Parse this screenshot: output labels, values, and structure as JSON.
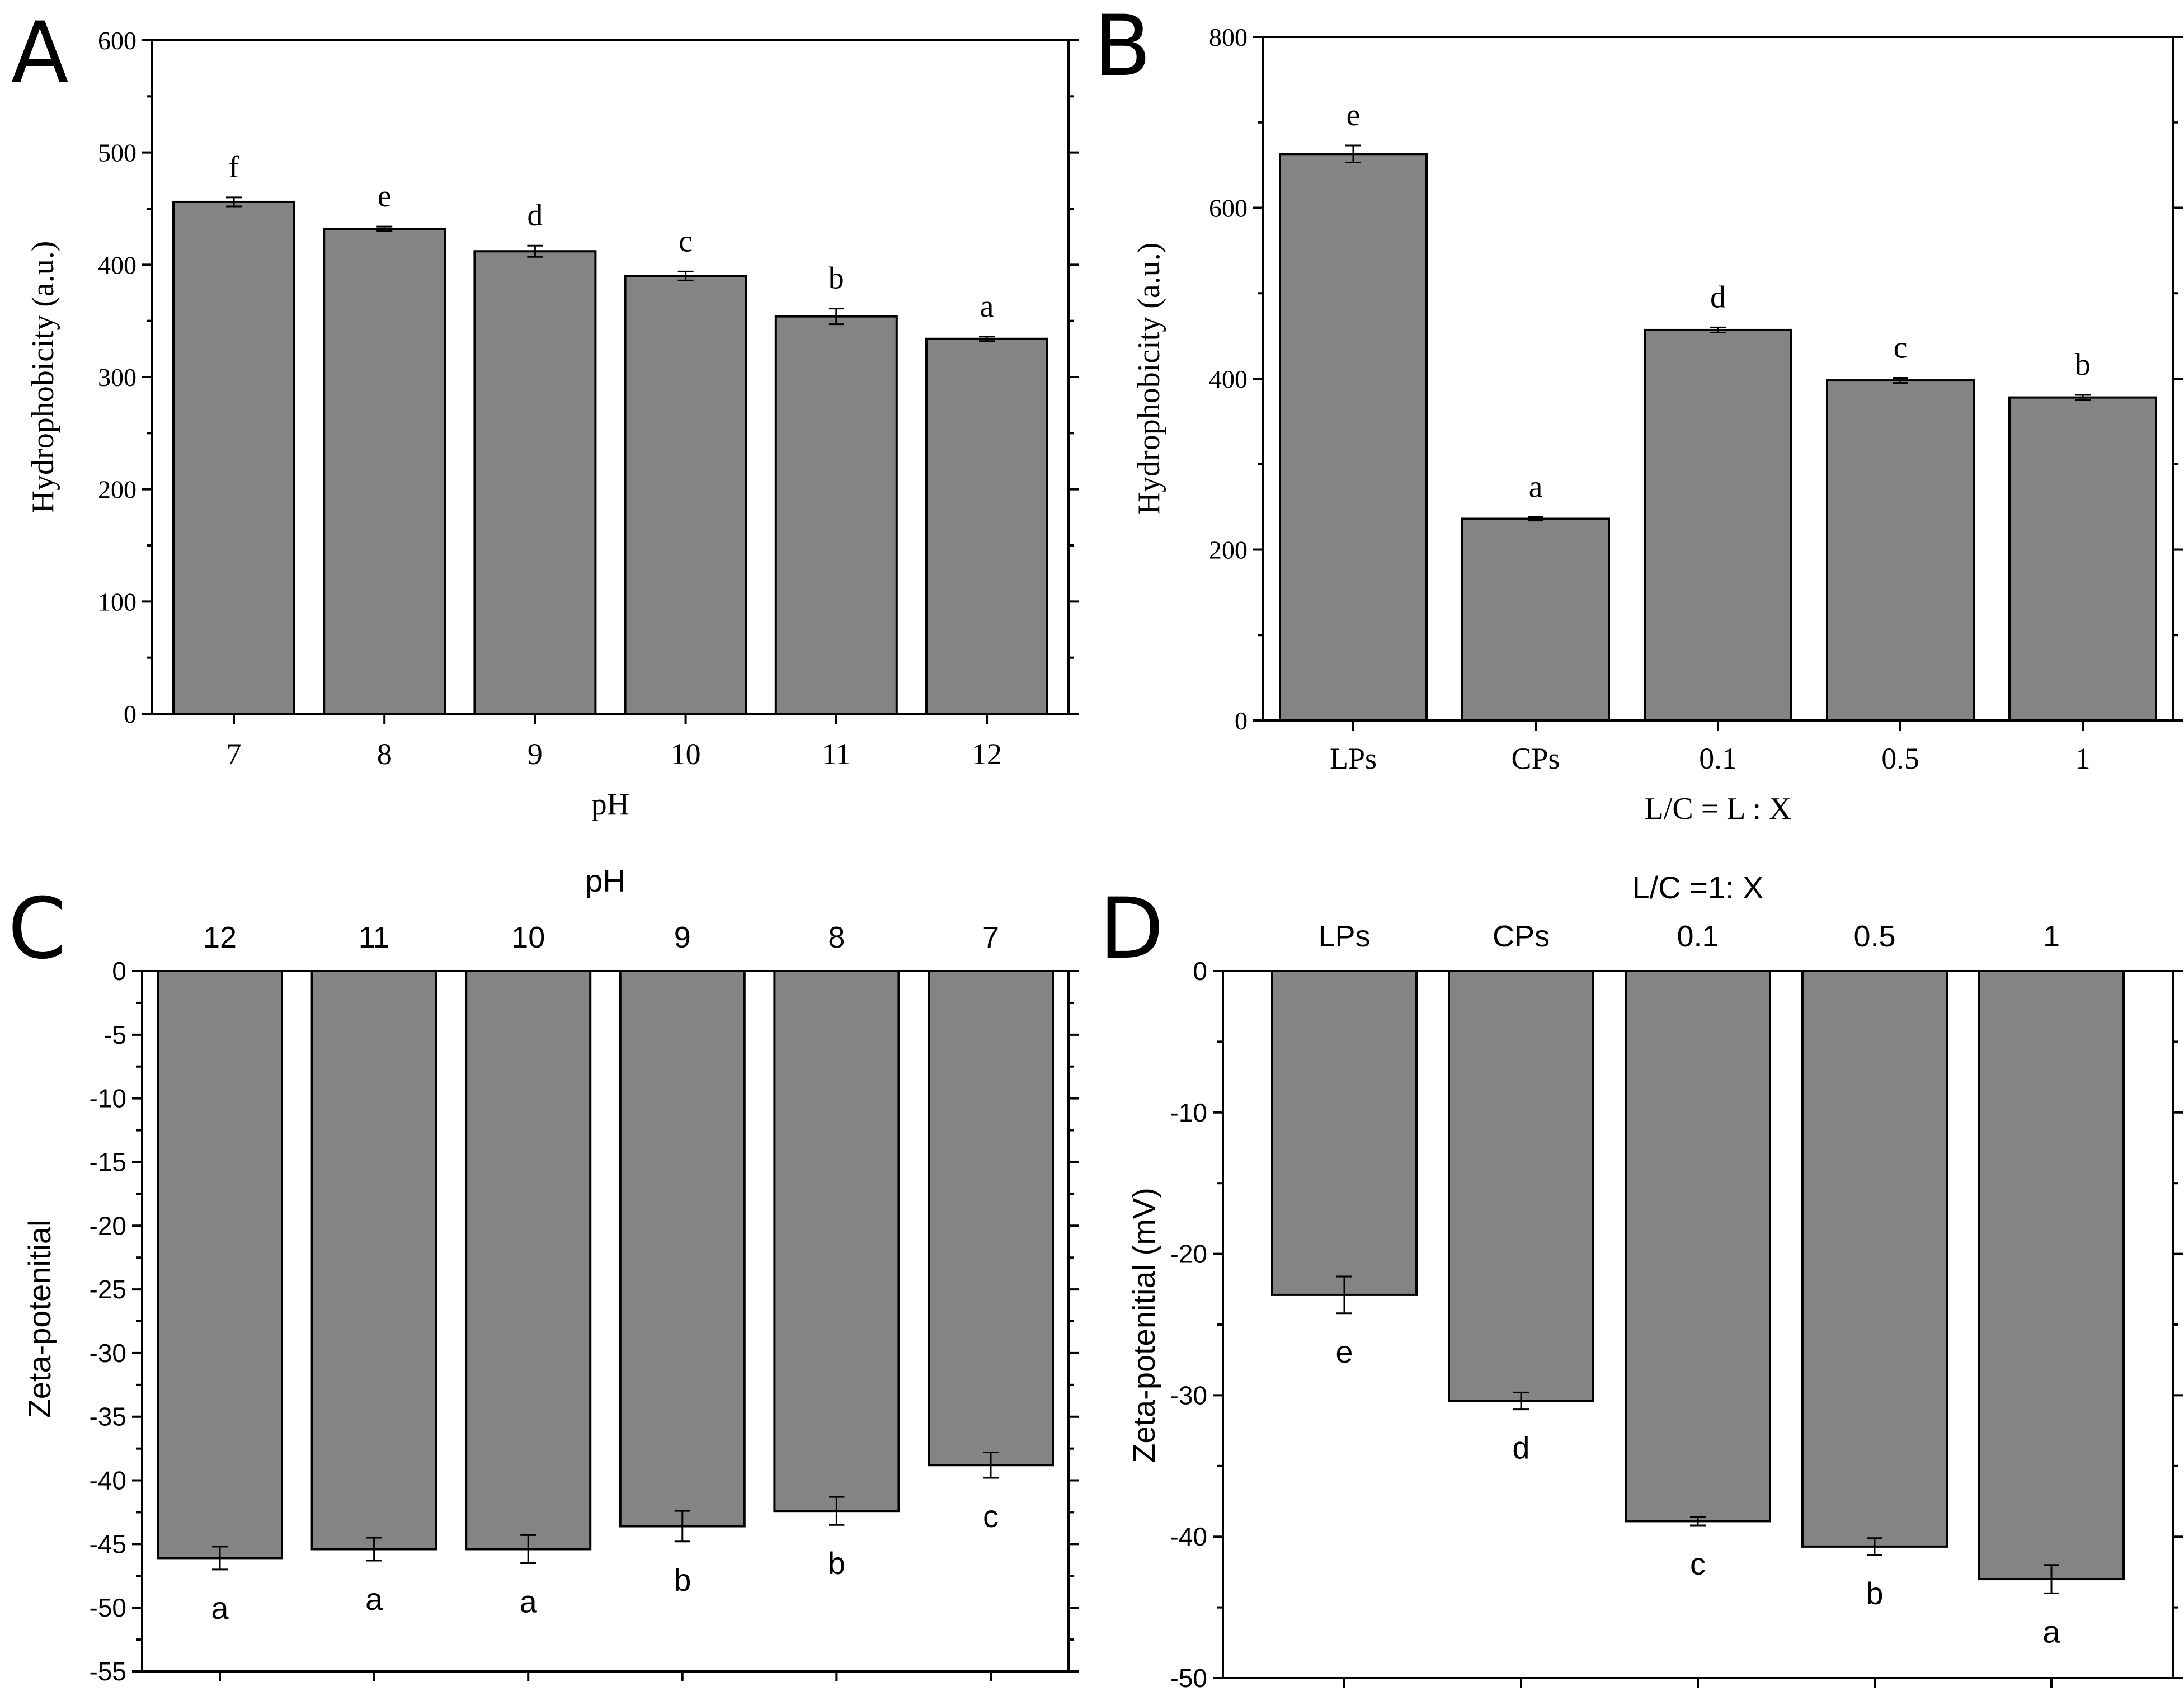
{
  "chart_data": [
    {
      "panel": "A",
      "type": "bar",
      "title": "",
      "xlabel": "pH",
      "ylabel": "Hydrophobicity (a.u.)",
      "categories": [
        "7",
        "8",
        "9",
        "10",
        "11",
        "12"
      ],
      "values": [
        456,
        432,
        412,
        390,
        354,
        334
      ],
      "errors": [
        4,
        2,
        5,
        4,
        7,
        2
      ],
      "significance": [
        "f",
        "e",
        "d",
        "c",
        "b",
        "a"
      ],
      "ylim": [
        0,
        600
      ],
      "yticks": [
        "0",
        "100",
        "200",
        "300",
        "400",
        "500",
        "600"
      ],
      "ytick_values": [
        0,
        100,
        200,
        300,
        400,
        500,
        600
      ],
      "font": "serif",
      "xaxis_position": "bottom"
    },
    {
      "panel": "B",
      "type": "bar",
      "title": "",
      "xlabel": "L/C = L : X",
      "ylabel": "Hydrophobicity (a.u.)",
      "categories": [
        "LPs",
        "CPs",
        "0.1",
        "0.5",
        "1"
      ],
      "values": [
        663,
        236,
        457,
        398,
        378
      ],
      "errors": [
        10,
        2,
        3,
        3,
        3
      ],
      "significance": [
        "e",
        "a",
        "d",
        "c",
        "b"
      ],
      "ylim": [
        0,
        800
      ],
      "yticks": [
        "0",
        "200",
        "400",
        "600",
        "800"
      ],
      "ytick_values": [
        0,
        200,
        400,
        600,
        800
      ],
      "font": "serif",
      "xaxis_position": "bottom"
    },
    {
      "panel": "C",
      "type": "bar",
      "title": "",
      "xlabel": "pH",
      "ylabel": "Zeta-potenitial",
      "categories": [
        "12",
        "11",
        "10",
        "9",
        "8",
        "7"
      ],
      "values": [
        -46.1,
        -45.4,
        -45.4,
        -43.6,
        -42.4,
        -38.8
      ],
      "errors": [
        0.9,
        0.9,
        1.1,
        1.2,
        1.1,
        1.0
      ],
      "significance": [
        "a",
        "a",
        "a",
        "b",
        "b",
        "c"
      ],
      "ylim": [
        -55,
        0
      ],
      "yticks": [
        "0",
        "-5",
        "-10",
        "-15",
        "-20",
        "-25",
        "-30",
        "-35",
        "-40",
        "-45",
        "-50",
        "-55"
      ],
      "ytick_values": [
        0,
        -5,
        -10,
        -15,
        -20,
        -25,
        -30,
        -35,
        -40,
        -45,
        -50,
        -55
      ],
      "font": "sans",
      "xaxis_position": "top"
    },
    {
      "panel": "D",
      "type": "bar",
      "title": "",
      "xlabel": "L/C =1: X",
      "ylabel": "Zeta-potenitial (mV)",
      "categories": [
        "LPs",
        "CPs",
        "0.1",
        "0.5",
        "1"
      ],
      "values": [
        -22.9,
        -30.4,
        -38.9,
        -40.7,
        -43.0
      ],
      "errors": [
        1.3,
        0.6,
        0.3,
        0.6,
        1.0
      ],
      "significance": [
        "e",
        "d",
        "c",
        "b",
        "a"
      ],
      "ylim": [
        -50,
        0
      ],
      "yticks": [
        "0",
        "-10",
        "-20",
        "-30",
        "-40",
        "-50"
      ],
      "ytick_values": [
        0,
        -10,
        -20,
        -30,
        -40,
        -50
      ],
      "font": "sans",
      "xaxis_position": "top"
    }
  ]
}
